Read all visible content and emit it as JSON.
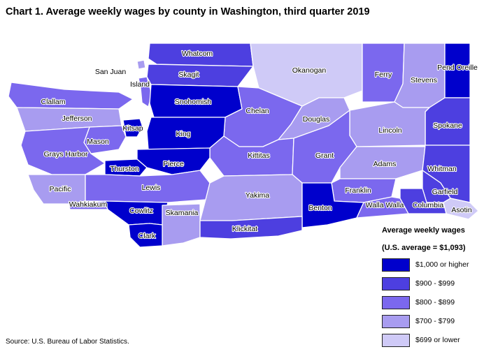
{
  "title": "Chart 1. Average weekly wages by county in Washington, third quarter 2019",
  "source": "Source: U.S. Bureau of Labor Statistics.",
  "legend": {
    "title": "Average weekly wages",
    "subtitle": "(U.S. average = $1,093)",
    "items": [
      {
        "label": "$1,000 or higher",
        "color": "#0000cc"
      },
      {
        "label": "$900 - $999",
        "color": "#4d3fe0"
      },
      {
        "label": "$800 - $899",
        "color": "#7b68ee"
      },
      {
        "label": "$700 - $799",
        "color": "#a89cf0"
      },
      {
        "label": "$699 or lower",
        "color": "#cfcaf7"
      }
    ]
  },
  "counties": [
    {
      "name": "Whatcom",
      "class": "$900 - $999"
    },
    {
      "name": "San Juan",
      "class": "$700 - $799"
    },
    {
      "name": "Skagit",
      "class": "$900 - $999"
    },
    {
      "name": "Island",
      "class": "$800 - $899"
    },
    {
      "name": "Okanogan",
      "class": "$699 or lower"
    },
    {
      "name": "Ferry",
      "class": "$800 - $899"
    },
    {
      "name": "Stevens",
      "class": "$700 - $799"
    },
    {
      "name": "Pend Oreille",
      "class": "$1,000 or higher"
    },
    {
      "name": "Clallam",
      "class": "$800 - $899"
    },
    {
      "name": "Jefferson",
      "class": "$700 - $799"
    },
    {
      "name": "Snohomish",
      "class": "$1,000 or higher"
    },
    {
      "name": "Chelan",
      "class": "$800 - $899"
    },
    {
      "name": "Douglas",
      "class": "$700 - $799"
    },
    {
      "name": "Spokane",
      "class": "$900 - $999"
    },
    {
      "name": "Kitsap",
      "class": "$1,000 or higher"
    },
    {
      "name": "King",
      "class": "$1,000 or higher"
    },
    {
      "name": "Mason",
      "class": "$800 - $899"
    },
    {
      "name": "Lincoln",
      "class": "$700 - $799"
    },
    {
      "name": "Grays Harbor",
      "class": "$800 - $899"
    },
    {
      "name": "Kittitas",
      "class": "$800 - $899"
    },
    {
      "name": "Grant",
      "class": "$800 - $899"
    },
    {
      "name": "Thurston",
      "class": "$1,000 or higher"
    },
    {
      "name": "Pierce",
      "class": "$1,000 or higher"
    },
    {
      "name": "Adams",
      "class": "$700 - $799"
    },
    {
      "name": "Whitman",
      "class": "$900 - $999"
    },
    {
      "name": "Pacific",
      "class": "$700 - $799"
    },
    {
      "name": "Lewis",
      "class": "$800 - $899"
    },
    {
      "name": "Yakima",
      "class": "$700 - $799"
    },
    {
      "name": "Franklin",
      "class": "$800 - $899"
    },
    {
      "name": "Garfield",
      "class": "$900 - $999"
    },
    {
      "name": "Wahkiakum",
      "class": "$800 - $899"
    },
    {
      "name": "Benton",
      "class": "$1,000 or higher"
    },
    {
      "name": "Walla Walla",
      "class": "$800 - $899"
    },
    {
      "name": "Columbia",
      "class": "$900 - $999"
    },
    {
      "name": "Asotin",
      "class": "$699 or lower"
    },
    {
      "name": "Cowlitz",
      "class": "$1,000 or higher"
    },
    {
      "name": "Skamania",
      "class": "$700 - $799"
    },
    {
      "name": "Klickitat",
      "class": "$900 - $999"
    },
    {
      "name": "Clark",
      "class": "$1,000 or higher"
    }
  ]
}
